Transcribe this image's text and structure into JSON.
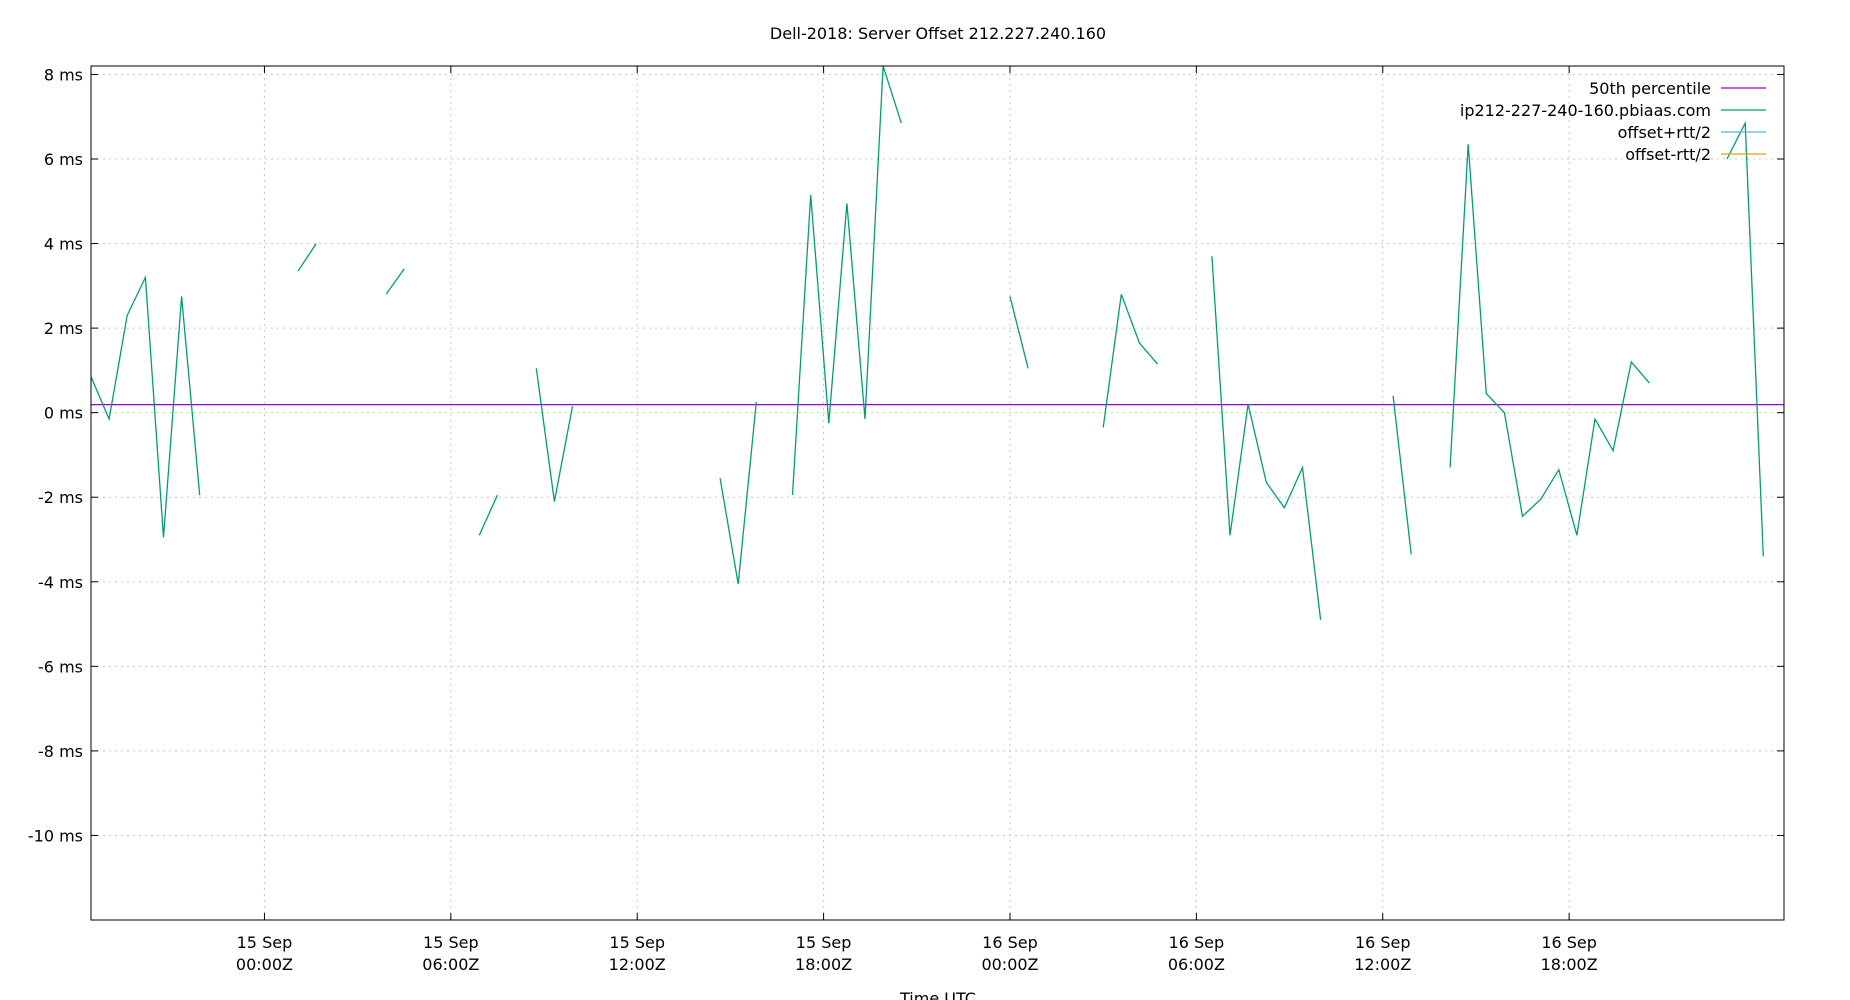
{
  "chart_data": {
    "type": "line",
    "title": "Dell-2018: Server Offset 212.227.240.160",
    "xlabel": "Time UTC",
    "ylabel": "",
    "xlim": [
      "2018-09-14T18:25Z",
      "2018-09-17T00:55Z"
    ],
    "ylim": [
      -12.0,
      8.2
    ],
    "y_ticks": [
      {
        "value": 8,
        "label": "8 ms"
      },
      {
        "value": 6,
        "label": "6 ms"
      },
      {
        "value": 4,
        "label": "4 ms"
      },
      {
        "value": 2,
        "label": "2 ms"
      },
      {
        "value": 0,
        "label": "0 ms"
      },
      {
        "value": -2,
        "label": "-2 ms"
      },
      {
        "value": -4,
        "label": "-4 ms"
      },
      {
        "value": -6,
        "label": "-6 ms"
      },
      {
        "value": -8,
        "label": "-8 ms"
      },
      {
        "value": -10,
        "label": "-10 ms"
      }
    ],
    "x_ticks": [
      {
        "time": "2018-09-15T00:00Z",
        "line1": "15 Sep",
        "line2": "00:00Z"
      },
      {
        "time": "2018-09-15T06:00Z",
        "line1": "15 Sep",
        "line2": "06:00Z"
      },
      {
        "time": "2018-09-15T12:00Z",
        "line1": "15 Sep",
        "line2": "12:00Z"
      },
      {
        "time": "2018-09-15T18:00Z",
        "line1": "15 Sep",
        "line2": "18:00Z"
      },
      {
        "time": "2018-09-16T00:00Z",
        "line1": "16 Sep",
        "line2": "00:00Z"
      },
      {
        "time": "2018-09-16T06:00Z",
        "line1": "16 Sep",
        "line2": "06:00Z"
      },
      {
        "time": "2018-09-16T12:00Z",
        "line1": "16 Sep",
        "line2": "12:00Z"
      },
      {
        "time": "2018-09-16T18:00Z",
        "line1": "16 Sep",
        "line2": "18:00Z"
      }
    ],
    "grid": true,
    "legend_position": "top-right",
    "series": [
      {
        "name": "50th percentile",
        "color": "#9400d3",
        "type": "hline",
        "y": 0.19
      },
      {
        "name": "ip212-227-240-160.pbiaas.com",
        "color": "#009e73",
        "segments": [
          [
            [
              "2018-09-14T18:25Z",
              0.85
            ],
            [
              "2018-09-14T19:00Z",
              -0.15
            ],
            [
              "2018-09-14T19:35Z",
              2.3
            ],
            [
              "2018-09-14T20:10Z",
              3.2
            ],
            [
              "2018-09-14T20:45Z",
              -2.95
            ],
            [
              "2018-09-14T21:20Z",
              2.75
            ],
            [
              "2018-09-14T21:55Z",
              -1.95
            ]
          ],
          [
            [
              "2018-09-15T01:05Z",
              3.35
            ],
            [
              "2018-09-15T01:40Z",
              4.0
            ]
          ],
          [
            [
              "2018-09-15T03:55Z",
              2.8
            ],
            [
              "2018-09-15T04:30Z",
              3.4
            ]
          ],
          [
            [
              "2018-09-15T06:55Z",
              -2.9
            ],
            [
              "2018-09-15T07:30Z",
              -1.95
            ]
          ],
          [
            [
              "2018-09-15T08:45Z",
              1.05
            ],
            [
              "2018-09-15T09:20Z",
              -2.1
            ],
            [
              "2018-09-15T09:55Z",
              0.15
            ]
          ],
          [
            [
              "2018-09-15T14:40Z",
              -1.55
            ],
            [
              "2018-09-15T15:15Z",
              -4.05
            ],
            [
              "2018-09-15T15:50Z",
              0.25
            ]
          ],
          [
            [
              "2018-09-15T17:00Z",
              -1.95
            ],
            [
              "2018-09-15T17:35Z",
              5.15
            ],
            [
              "2018-09-15T18:10Z",
              -0.25
            ],
            [
              "2018-09-15T18:45Z",
              4.95
            ],
            [
              "2018-09-15T19:20Z",
              -0.15
            ],
            [
              "2018-09-15T19:55Z",
              8.2
            ],
            [
              "2018-09-15T20:30Z",
              6.85
            ]
          ],
          [
            [
              "2018-09-16T00:00Z",
              2.75
            ],
            [
              "2018-09-16T00:35Z",
              1.05
            ]
          ],
          [
            [
              "2018-09-16T03:00Z",
              -0.35
            ],
            [
              "2018-09-16T03:35Z",
              2.8
            ],
            [
              "2018-09-16T04:10Z",
              1.65
            ],
            [
              "2018-09-16T04:45Z",
              1.15
            ]
          ],
          [
            [
              "2018-09-16T06:30Z",
              3.7
            ],
            [
              "2018-09-16T07:05Z",
              -2.9
            ],
            [
              "2018-09-16T07:40Z",
              0.2
            ],
            [
              "2018-09-16T08:15Z",
              -1.65
            ],
            [
              "2018-09-16T08:50Z",
              -2.25
            ],
            [
              "2018-09-16T09:25Z",
              -1.3
            ],
            [
              "2018-09-16T10:00Z",
              -4.9
            ]
          ],
          [
            [
              "2018-09-16T12:20Z",
              0.4
            ],
            [
              "2018-09-16T12:55Z",
              -3.35
            ]
          ],
          [
            [
              "2018-09-16T14:10Z",
              -1.3
            ],
            [
              "2018-09-16T14:45Z",
              6.35
            ],
            [
              "2018-09-16T15:20Z",
              0.45
            ],
            [
              "2018-09-16T15:55Z",
              0.0
            ],
            [
              "2018-09-16T16:30Z",
              -2.45
            ],
            [
              "2018-09-16T17:05Z",
              -2.05
            ],
            [
              "2018-09-16T17:40Z",
              -1.35
            ],
            [
              "2018-09-16T18:15Z",
              -2.9
            ],
            [
              "2018-09-16T18:50Z",
              -0.15
            ],
            [
              "2018-09-16T19:25Z",
              -0.9
            ],
            [
              "2018-09-16T20:00Z",
              1.2
            ],
            [
              "2018-09-16T20:35Z",
              0.7
            ]
          ],
          [
            [
              "2018-09-16T23:05Z",
              6.0
            ],
            [
              "2018-09-16T23:40Z",
              6.85
            ],
            [
              "2018-09-17T00:15Z",
              -3.4
            ]
          ]
        ]
      },
      {
        "name": "offset+rtt/2",
        "color": "#56b4e9",
        "segments": []
      },
      {
        "name": "offset-rtt/2",
        "color": "#e69f00",
        "segments": []
      }
    ]
  }
}
